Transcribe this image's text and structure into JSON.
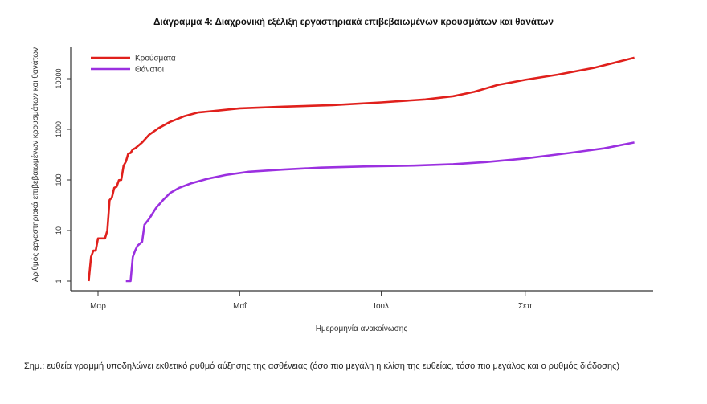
{
  "chart_data": {
    "type": "line",
    "title": "Διάγραμμα 4: Διαχρονική εξέλιξη εργαστηριακά επιβεβαιωμένων κρουσμάτων και θανάτων",
    "xlabel": "Ημερομηνία ανακοίνωσης",
    "ylabel": "Αριθμός εργαστηριακά επιβεβαιωμένων κρουσμάτων και θανάτων",
    "yscale": "log",
    "ylim": [
      1,
      40000
    ],
    "yticks": [
      "1",
      "10",
      "100",
      "1000",
      "10000"
    ],
    "xticks": [
      {
        "label": "Μαρ",
        "date": "2020-03-01"
      },
      {
        "label": "Μαΐ",
        "date": "2020-05-01"
      },
      {
        "label": "Ιουλ",
        "date": "2020-07-01"
      },
      {
        "label": "Σεπ",
        "date": "2020-09-01"
      }
    ],
    "grid": false,
    "legend_position": "top-left",
    "series": [
      {
        "name": "Κρούσματα",
        "color": "#e0201c",
        "points": [
          [
            "2020-02-26",
            1
          ],
          [
            "2020-02-27",
            3
          ],
          [
            "2020-02-28",
            4
          ],
          [
            "2020-02-29",
            4
          ],
          [
            "2020-03-01",
            7
          ],
          [
            "2020-03-04",
            7
          ],
          [
            "2020-03-05",
            10
          ],
          [
            "2020-03-06",
            40
          ],
          [
            "2020-03-07",
            45
          ],
          [
            "2020-03-08",
            70
          ],
          [
            "2020-03-09",
            73
          ],
          [
            "2020-03-10",
            99
          ],
          [
            "2020-03-11",
            100
          ],
          [
            "2020-03-12",
            190
          ],
          [
            "2020-03-13",
            230
          ],
          [
            "2020-03-14",
            330
          ],
          [
            "2020-03-15",
            340
          ],
          [
            "2020-03-16",
            400
          ],
          [
            "2020-03-17",
            420
          ],
          [
            "2020-03-20",
            550
          ],
          [
            "2020-03-23",
            780
          ],
          [
            "2020-03-27",
            1050
          ],
          [
            "2020-04-01",
            1400
          ],
          [
            "2020-04-07",
            1800
          ],
          [
            "2020-04-13",
            2150
          ],
          [
            "2020-04-20",
            2300
          ],
          [
            "2020-05-01",
            2600
          ],
          [
            "2020-05-20",
            2800
          ],
          [
            "2020-06-10",
            3000
          ],
          [
            "2020-07-01",
            3400
          ],
          [
            "2020-07-20",
            3900
          ],
          [
            "2020-08-01",
            4500
          ],
          [
            "2020-08-10",
            5500
          ],
          [
            "2020-08-20",
            7500
          ],
          [
            "2020-09-01",
            9500
          ],
          [
            "2020-09-15",
            12000
          ],
          [
            "2020-10-01",
            16500
          ],
          [
            "2020-10-18",
            26000
          ]
        ]
      },
      {
        "name": "Θάνατοι",
        "color": "#9b30e0",
        "points": [
          [
            "2020-03-13",
            1
          ],
          [
            "2020-03-15",
            1
          ],
          [
            "2020-03-16",
            3
          ],
          [
            "2020-03-17",
            4
          ],
          [
            "2020-03-18",
            5
          ],
          [
            "2020-03-20",
            6
          ],
          [
            "2020-03-21",
            13
          ],
          [
            "2020-03-23",
            17
          ],
          [
            "2020-03-26",
            28
          ],
          [
            "2020-03-29",
            40
          ],
          [
            "2020-04-01",
            55
          ],
          [
            "2020-04-05",
            70
          ],
          [
            "2020-04-10",
            85
          ],
          [
            "2020-04-17",
            105
          ],
          [
            "2020-04-25",
            125
          ],
          [
            "2020-05-05",
            145
          ],
          [
            "2020-05-20",
            160
          ],
          [
            "2020-06-05",
            175
          ],
          [
            "2020-06-25",
            185
          ],
          [
            "2020-07-15",
            192
          ],
          [
            "2020-08-01",
            205
          ],
          [
            "2020-08-15",
            225
          ],
          [
            "2020-09-01",
            265
          ],
          [
            "2020-09-20",
            340
          ],
          [
            "2020-10-05",
            420
          ],
          [
            "2020-10-18",
            550
          ]
        ]
      }
    ]
  },
  "note": "Σημ.: ευθεία γραμμή υποδηλώνει εκθετικό ρυθμό αύξησης της ασθένειας (όσο πιο μεγάλη η κλίση της ευθείας, τόσο πιο μεγάλος και ο ρυθμός διάδοσης)"
}
